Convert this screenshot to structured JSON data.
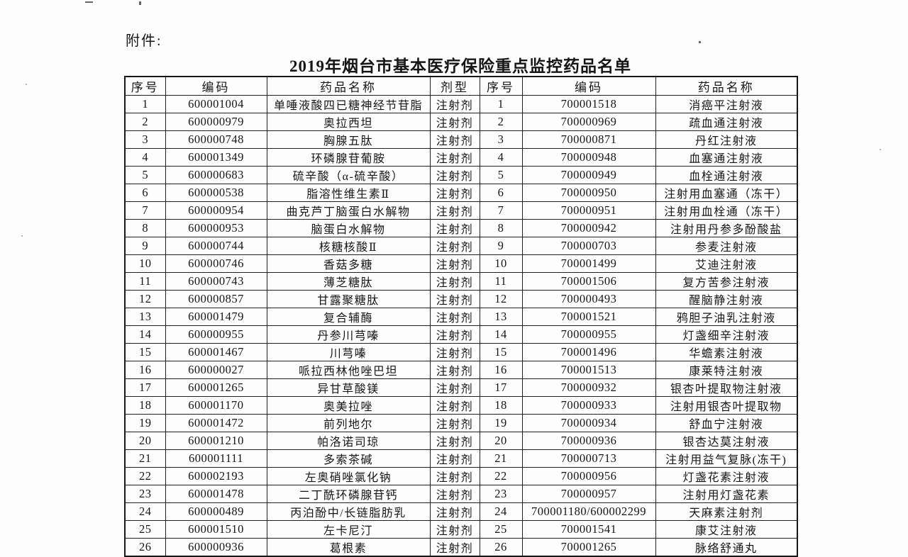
{
  "attachment_label": "附件:",
  "title": "2019年烟台市基本医疗保险重点监控药品名单",
  "colors": {
    "ink": "#1f1f1f",
    "paper": "#fdfdfd"
  },
  "table": {
    "headers": [
      "序号",
      "编码",
      "药品名称",
      "剂型",
      "序号",
      "编码",
      "药品名称"
    ],
    "rows": [
      [
        "1",
        "600001004",
        "单唾液酸四已糖神经节苷脂",
        "注射剂",
        "1",
        "700001518",
        "消癌平注射液"
      ],
      [
        "2",
        "600000979",
        "奥拉西坦",
        "注射剂",
        "2",
        "700000969",
        "疏血通注射液"
      ],
      [
        "3",
        "600000748",
        "胸腺五肽",
        "注射剂",
        "3",
        "700000871",
        "丹红注射液"
      ],
      [
        "4",
        "600001349",
        "环磷腺苷葡胺",
        "注射剂",
        "4",
        "700000948",
        "血塞通注射液"
      ],
      [
        "5",
        "600000683",
        "硫辛酸（α-硫辛酸）",
        "注射剂",
        "5",
        "700000949",
        "血栓通注射液"
      ],
      [
        "6",
        "600000538",
        "脂溶性维生素Ⅱ",
        "注射剂",
        "6",
        "700000950",
        "注射用血塞通（冻干）"
      ],
      [
        "7",
        "600000954",
        "曲克芦丁脑蛋白水解物",
        "注射剂",
        "7",
        "700000951",
        "注射用血栓通（冻干）"
      ],
      [
        "8",
        "600000953",
        "脑蛋白水解物",
        "注射剂",
        "8",
        "700000942",
        "注射用丹参多酚酸盐"
      ],
      [
        "9",
        "600000744",
        "核糖核酸Ⅱ",
        "注射剂",
        "9",
        "700000703",
        "参麦注射液"
      ],
      [
        "10",
        "600000746",
        "香菇多糖",
        "注射剂",
        "10",
        "700001499",
        "艾迪注射液"
      ],
      [
        "11",
        "600000743",
        "薄芝糖肽",
        "注射剂",
        "11",
        "700001506",
        "复方苦参注射液"
      ],
      [
        "12",
        "600000857",
        "甘露聚糖肽",
        "注射剂",
        "12",
        "700000493",
        "醒脑静注射液"
      ],
      [
        "13",
        "600001479",
        "复合辅酶",
        "注射剂",
        "13",
        "700001521",
        "鸦胆子油乳注射液"
      ],
      [
        "14",
        "600000955",
        "丹参川芎嗪",
        "注射剂",
        "14",
        "700000955",
        "灯盏细辛注射液"
      ],
      [
        "15",
        "600001467",
        "川芎嗪",
        "注射剂",
        "15",
        "700001496",
        "华蟾素注射液"
      ],
      [
        "16",
        "600000027",
        "哌拉西林他唑巴坦",
        "注射剂",
        "16",
        "700001513",
        "康莱特注射液"
      ],
      [
        "17",
        "600001265",
        "异甘草酸镁",
        "注射剂",
        "17",
        "700000932",
        "银杏叶提取物注射液"
      ],
      [
        "18",
        "600001170",
        "奥美拉唑",
        "注射剂",
        "18",
        "700000933",
        "注射用银杏叶提取物"
      ],
      [
        "19",
        "600001472",
        "前列地尔",
        "注射剂",
        "19",
        "700000934",
        "舒血宁注射液"
      ],
      [
        "20",
        "600001210",
        "帕洛诺司琼",
        "注射剂",
        "20",
        "700000936",
        "银杏达莫注射液"
      ],
      [
        "21",
        "600001111",
        "多索茶碱",
        "注射剂",
        "21",
        "700000713",
        "注射用益气复脉(冻干)"
      ],
      [
        "22",
        "600002193",
        "左奥硝唑氯化钠",
        "注射剂",
        "22",
        "700000956",
        "灯盏花素注射液"
      ],
      [
        "23",
        "600001478",
        "二丁酰环磷腺苷钙",
        "注射剂",
        "23",
        "700000957",
        "注射用灯盏花素"
      ],
      [
        "24",
        "600000489",
        "丙泊酚中/长链脂肪乳",
        "注射剂",
        "24",
        "700001180/600002299",
        "天麻素注射剂"
      ],
      [
        "25",
        "600001510",
        "左卡尼汀",
        "注射剂",
        "25",
        "700001541",
        "康艾注射液"
      ],
      [
        "26",
        "600000936",
        "葛根素",
        "注射剂",
        "26",
        "700001265",
        "脉络舒通丸"
      ]
    ]
  }
}
